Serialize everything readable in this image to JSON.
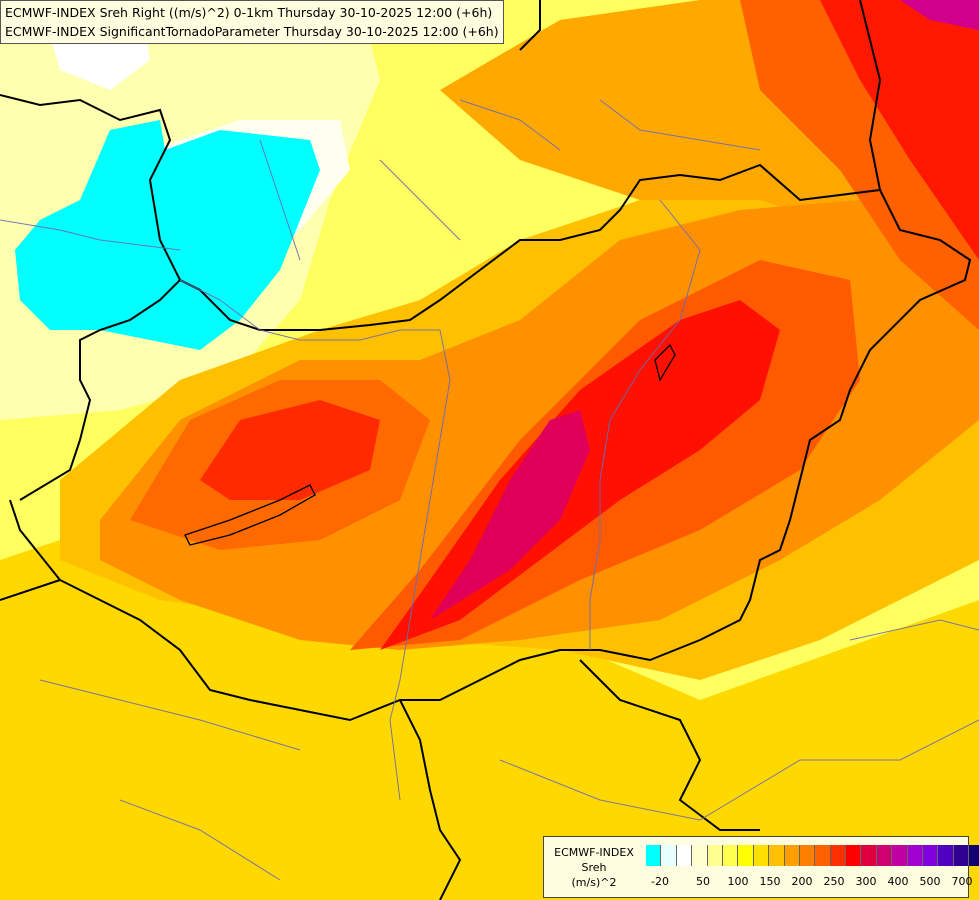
{
  "titles": {
    "line1": "ECMWF-INDEX Sreh Right ((m/s)^2) 0-1km Thursday 30-10-2025 12:00 (+6h)",
    "line2": "ECMWF-INDEX SignificantTornadoParameter Thursday 30-10-2025 12:00 (+6h)"
  },
  "legend": {
    "line1": "ECMWF-INDEX",
    "line2": "Sreh",
    "line3": "(m/s)^2",
    "colors": [
      "#00ffff",
      "#e8ffff",
      "#ffffff",
      "#ffffd0",
      "#ffff90",
      "#ffff50",
      "#ffff00",
      "#ffe000",
      "#ffc000",
      "#ffa000",
      "#ff8000",
      "#ff6000",
      "#ff3000",
      "#ff0000",
      "#e00040",
      "#d00070",
      "#c000a0",
      "#a000d0",
      "#8000e0",
      "#5000c0",
      "#300090",
      "#100070"
    ],
    "ticks": [
      "-20",
      "50",
      "100",
      "150",
      "200",
      "250",
      "300",
      "400",
      "500",
      "700"
    ]
  },
  "colors": {
    "background": "#ffff80",
    "cyan_area": "#00ffff",
    "high": "#ff0000",
    "peak": "#e0005a"
  }
}
